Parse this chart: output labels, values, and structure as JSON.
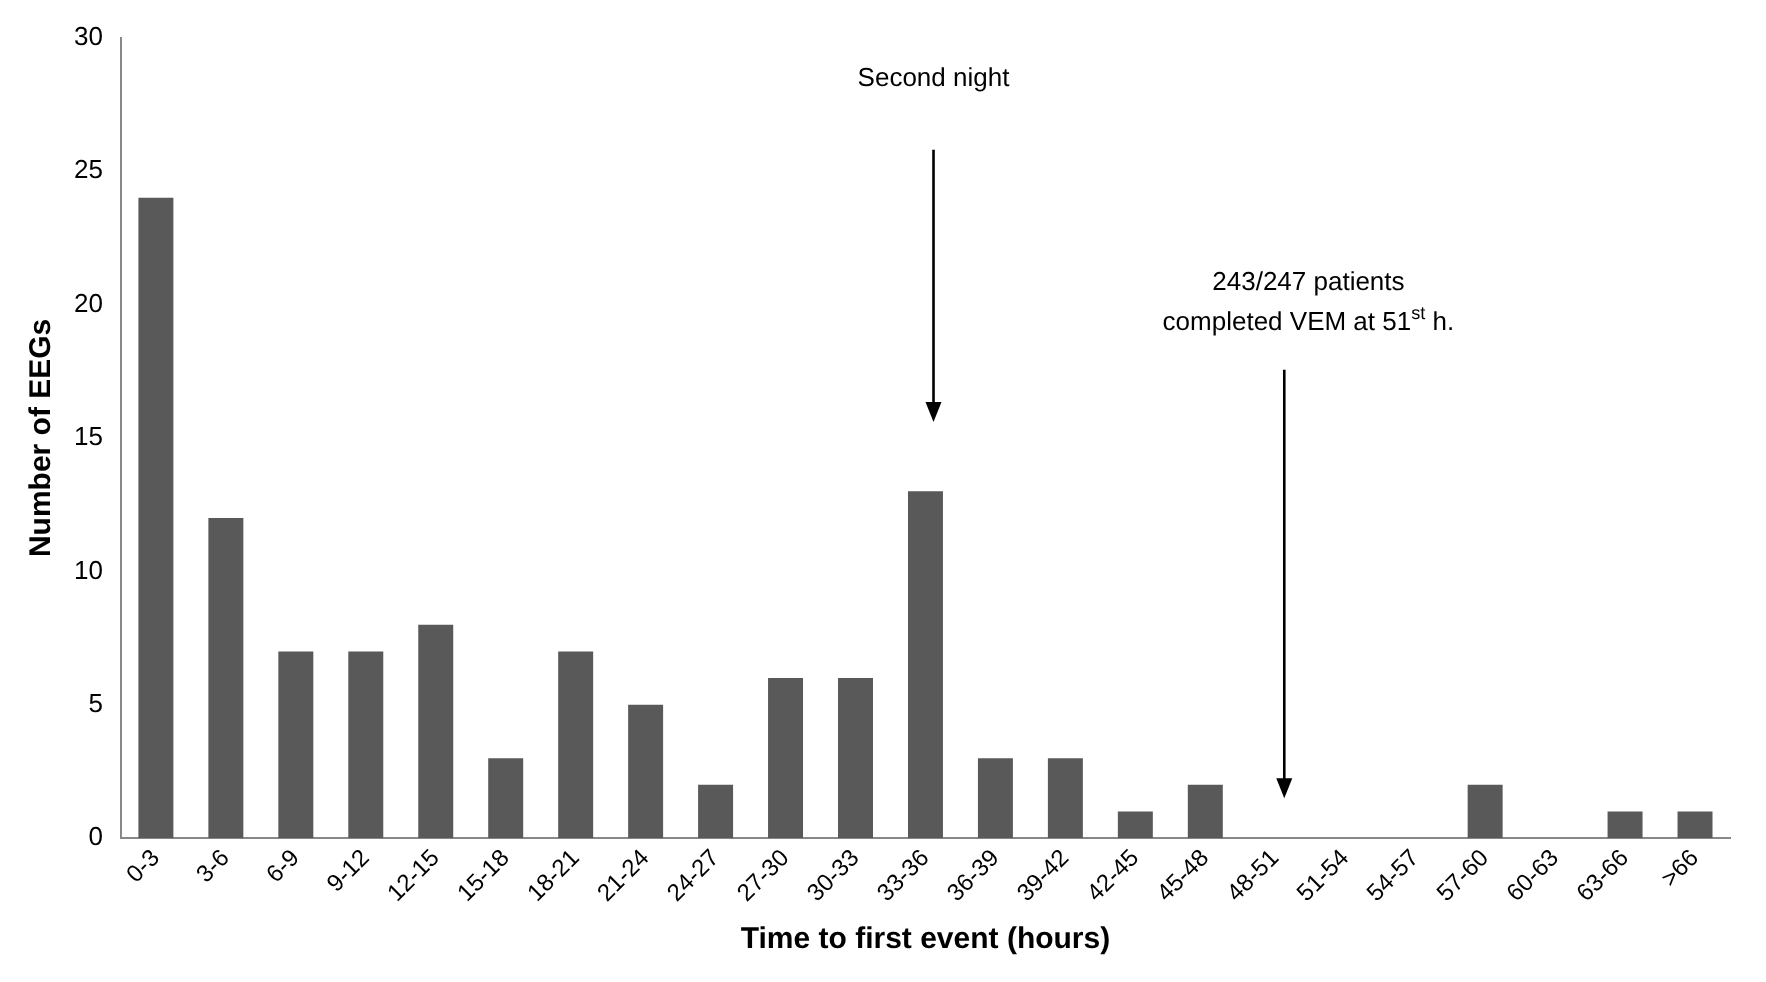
{
  "chart_data": {
    "type": "bar",
    "xlabel": "Time to first event (hours)",
    "ylabel": "Number of EEGs",
    "categories": [
      "0-3",
      "3-6",
      "6-9",
      "9-12",
      "12-15",
      "15-18",
      "18-21",
      "21-24",
      "24-27",
      "27-30",
      "30-33",
      "33-36",
      "36-39",
      "39-42",
      "42-45",
      "45-48",
      "48-51",
      "51-54",
      "54-57",
      "57-60",
      "60-63",
      "63-66",
      ">66"
    ],
    "values": [
      24,
      12,
      7,
      7,
      8,
      3,
      7,
      5,
      2,
      6,
      6,
      13,
      3,
      3,
      1,
      2,
      0,
      0,
      0,
      2,
      0,
      1,
      1
    ],
    "color": "#595959",
    "ylim": [
      0,
      30
    ],
    "yticks": [
      0,
      5,
      10,
      15,
      20,
      25,
      30
    ],
    "grid": false,
    "legend": false,
    "annotations": [
      "Second night",
      "243/247 patients\ncompleted VEM at 51$^{st}$ h."
    ]
  }
}
